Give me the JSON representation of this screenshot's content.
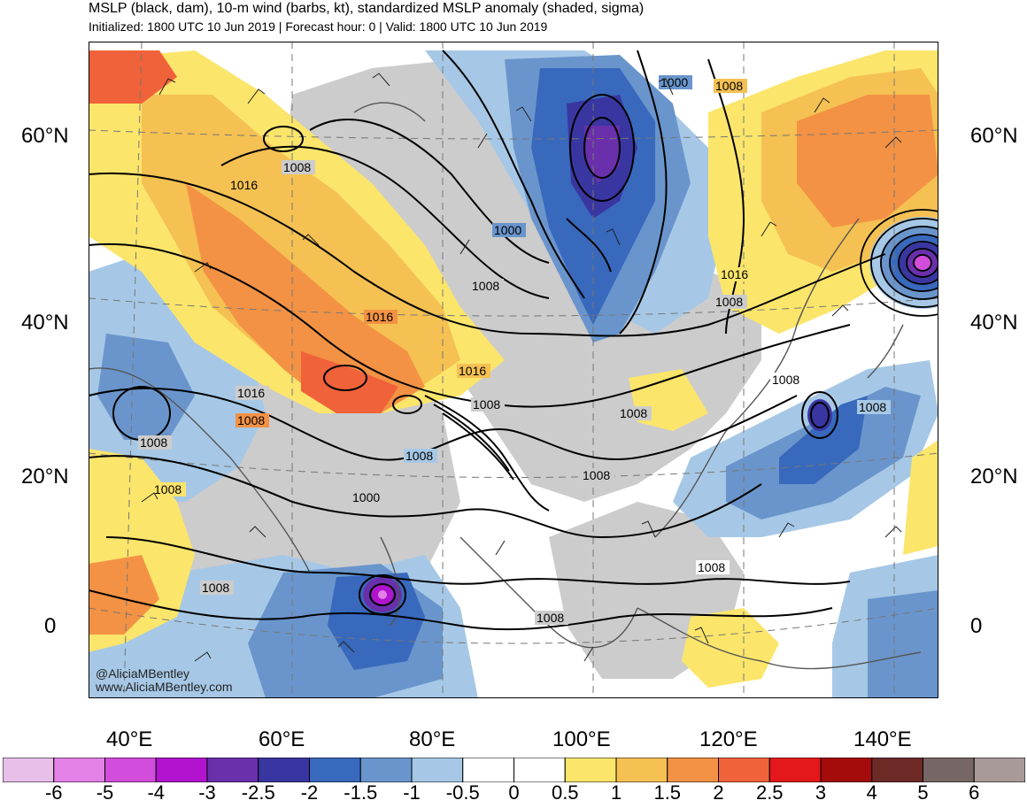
{
  "header": {
    "title": "MSLP (black, dam), 10-m wind (barbs, kt), standardized MSLP anomaly (shaded, sigma)",
    "subtitle": "Initialized: 1800 UTC 10 Jun 2019 | Forecast hour: 0 | Valid: 1800 UTC 10 Jun 2019"
  },
  "axes": {
    "lat_labels": [
      "60°N",
      "40°N",
      "20°N",
      "0"
    ],
    "lon_labels": [
      "40°E",
      "60°E",
      "80°E",
      "100°E",
      "120°E",
      "140°E"
    ]
  },
  "isobar_labels": [
    "1016",
    "1008",
    "1016",
    "1000",
    "1008",
    "1008",
    "1016",
    "1016",
    "1008",
    "1008",
    "1008",
    "1008",
    "1008",
    "1008",
    "1016",
    "1000",
    "1008",
    "1008",
    "1008",
    "1008",
    "1008",
    "1008",
    "1000",
    "1008"
  ],
  "credits": {
    "handle": "@AliciaMBentley",
    "site": "www.AliciaMBentley.com"
  },
  "colorbar": {
    "labels": [
      "-6",
      "-5",
      "-4",
      "-3",
      "-2.5",
      "-2",
      "-1.5",
      "-1",
      "-0.5",
      "0",
      "0.5",
      "1",
      "1.5",
      "2",
      "2.5",
      "3",
      "4",
      "5",
      "6"
    ],
    "colors": [
      "#e7bfe8",
      "#e381e6",
      "#d24ddc",
      "#b113cf",
      "#6a2fab",
      "#3a36a1",
      "#3869bd",
      "#6a95cc",
      "#a6c8e6",
      "#ffffff",
      "#ffffff",
      "#fbe56b",
      "#f5c152",
      "#f39244",
      "#f0623a",
      "#e4181b",
      "#a40c0c",
      "#6d2a27",
      "#766766",
      "#a79a99"
    ]
  },
  "map": {
    "anomaly_colors": {
      "blue_light": "#a6c8e6",
      "blue_mid": "#6a95cc",
      "blue_dark": "#3869bd",
      "navy": "#3a36a1",
      "purple": "#6a2fab",
      "magenta": "#b113cf",
      "yellow": "#fbe56b",
      "gold": "#f5c152",
      "orange": "#f39244",
      "red_orange": "#f0623a",
      "gray": "#cccccc"
    }
  }
}
